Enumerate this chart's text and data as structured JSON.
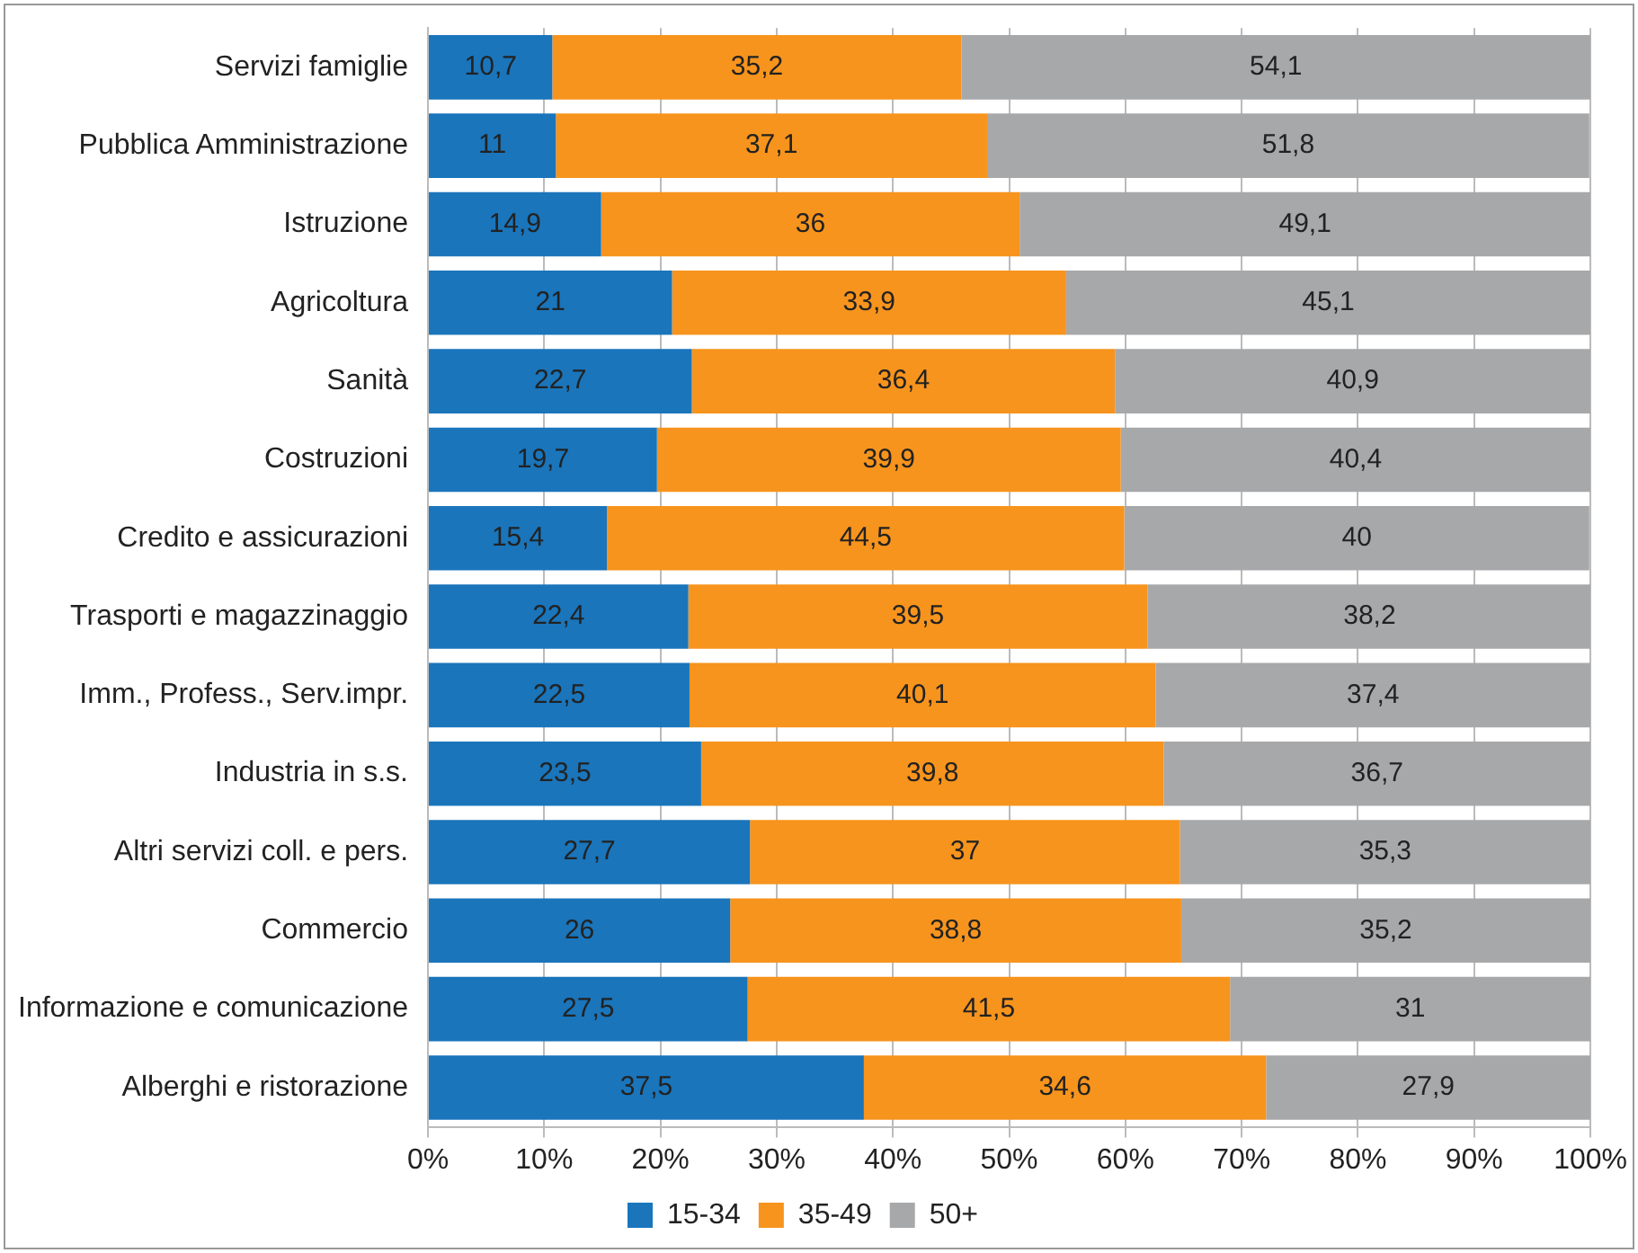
{
  "chart_data": {
    "type": "bar",
    "orientation": "horizontal",
    "stacked": true,
    "categories": [
      "Servizi famiglie",
      "Pubblica Amministrazione",
      "Istruzione",
      "Agricoltura",
      "Sanità",
      "Costruzioni",
      "Credito e assicurazioni",
      "Trasporti e magazzinaggio",
      "Imm., Profess., Serv.impr.",
      "Industria in s.s.",
      "Altri servizi coll. e pers.",
      "Commercio",
      "Informazione e comunicazione",
      "Alberghi e ristorazione"
    ],
    "series": [
      {
        "name": "15-34",
        "color": "#1a75bb",
        "values": [
          10.7,
          11,
          14.9,
          21,
          22.7,
          19.7,
          15.4,
          22.4,
          22.5,
          23.5,
          27.7,
          26,
          27.5,
          37.5
        ],
        "value_labels": [
          "10,7",
          "11",
          "14,9",
          "21",
          "22,7",
          "19,7",
          "15,4",
          "22,4",
          "22,5",
          "23,5",
          "27,7",
          "26",
          "27,5",
          "37,5"
        ]
      },
      {
        "name": "35-49",
        "color": "#f7941d",
        "values": [
          35.2,
          37.1,
          36,
          33.9,
          36.4,
          39.9,
          44.5,
          39.5,
          40.1,
          39.8,
          37,
          38.8,
          41.5,
          34.6
        ],
        "value_labels": [
          "35,2",
          "37,1",
          "36",
          "33,9",
          "36,4",
          "39,9",
          "44,5",
          "39,5",
          "40,1",
          "39,8",
          "37",
          "38,8",
          "41,5",
          "34,6"
        ]
      },
      {
        "name": "50+",
        "color": "#a7a8aa",
        "values": [
          54.1,
          51.8,
          49.1,
          45.1,
          40.9,
          40.4,
          40,
          38.2,
          37.4,
          36.7,
          35.3,
          35.2,
          31,
          27.9
        ],
        "value_labels": [
          "54,1",
          "51,8",
          "49,1",
          "45,1",
          "40,9",
          "40,4",
          "40",
          "38,2",
          "37,4",
          "36,7",
          "35,3",
          "35,2",
          "31",
          "27,9"
        ]
      }
    ],
    "xlim": [
      0,
      100
    ],
    "xticks": [
      {
        "value": 0,
        "label": "0%"
      },
      {
        "value": 10,
        "label": "10%"
      },
      {
        "value": 20,
        "label": "20%"
      },
      {
        "value": 30,
        "label": "30%"
      },
      {
        "value": 40,
        "label": "40%"
      },
      {
        "value": 50,
        "label": "50%"
      },
      {
        "value": 60,
        "label": "60%"
      },
      {
        "value": 70,
        "label": "70%"
      },
      {
        "value": 80,
        "label": "80%"
      },
      {
        "value": 90,
        "label": "90%"
      },
      {
        "value": 100,
        "label": "100%"
      }
    ],
    "grid": "x",
    "legend": "bottom"
  }
}
